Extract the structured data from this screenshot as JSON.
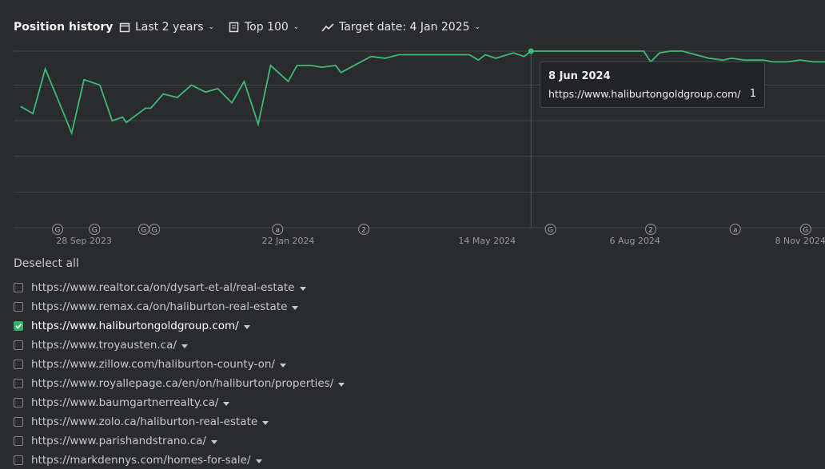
{
  "header": {
    "title": "Position history",
    "period": "Last 2 years",
    "top": "Top 100",
    "target_date": "Target date: 4 Jan 2025"
  },
  "chart_data": {
    "type": "line",
    "color": "#3dbb76",
    "x": [
      "2023-08-23",
      "2023-08-30",
      "2023-09-06",
      "2023-09-14",
      "2023-09-21",
      "2023-09-28",
      "2023-10-07",
      "2023-10-14",
      "2023-10-20",
      "2023-10-22",
      "2023-11-02",
      "2023-11-05",
      "2023-11-12",
      "2023-11-20",
      "2023-11-28",
      "2023-12-06",
      "2023-12-13",
      "2023-12-21",
      "2023-12-28",
      "2024-01-05",
      "2024-01-12",
      "2024-01-22",
      "2024-01-27",
      "2024-02-04",
      "2024-02-10",
      "2024-02-18",
      "2024-02-21",
      "2024-03-09",
      "2024-03-17",
      "2024-03-25",
      "2024-05-04",
      "2024-05-09",
      "2024-05-13",
      "2024-05-19",
      "2024-05-29",
      "2024-06-04",
      "2024-06-08",
      "2024-08-11",
      "2024-08-15",
      "2024-08-20",
      "2024-08-26",
      "2024-09-02",
      "2024-09-17",
      "2024-09-25",
      "2024-09-30",
      "2024-10-07",
      "2024-10-18",
      "2024-10-23",
      "2024-11-01",
      "2024-11-08",
      "2024-11-15",
      "2024-11-22"
    ],
    "values": [
      32,
      36,
      11,
      30,
      47,
      17,
      20,
      40,
      38,
      41,
      33,
      33,
      25,
      27,
      20,
      24,
      22,
      30,
      18,
      42,
      9,
      18,
      9,
      9,
      10,
      9,
      13,
      4,
      5,
      3,
      3,
      6,
      3,
      5,
      2,
      4,
      1,
      1,
      7,
      2,
      1,
      1,
      5,
      6,
      5,
      6,
      6,
      7,
      7,
      6,
      7,
      7
    ],
    "xlim": [
      "2023-08-19",
      "2024-11-22"
    ],
    "xticks": [
      {
        "value": "2023-09-28",
        "label": "28 Sep 2023"
      },
      {
        "value": "2024-01-22",
        "label": "22 Jan 2024"
      },
      {
        "value": "2024-05-14",
        "label": "14 May 2024"
      },
      {
        "value": "2024-08-06",
        "label": "6 Aug 2024"
      },
      {
        "value": "2024-11-08",
        "label": "8 Nov 2024"
      }
    ],
    "ylim": [
      100,
      1
    ],
    "gridlines": [
      1,
      20,
      40,
      60,
      80,
      100
    ],
    "markers": [
      {
        "x": "2023-09-13",
        "label": "G"
      },
      {
        "x": "2023-10-04",
        "label": "G"
      },
      {
        "x": "2023-11-01",
        "label": "G"
      },
      {
        "x": "2023-11-07",
        "label": "G"
      },
      {
        "x": "2024-01-16",
        "label": "a"
      },
      {
        "x": "2024-03-05",
        "label": "2"
      },
      {
        "x": "2024-06-19",
        "label": "G"
      },
      {
        "x": "2024-08-15",
        "label": "2"
      },
      {
        "x": "2024-10-02",
        "label": "a"
      },
      {
        "x": "2024-11-11",
        "label": "G"
      }
    ],
    "tooltip": {
      "date": {
        "value": "2024-06-08",
        "label": "8 Jun 2024"
      },
      "url": "https://www.haliburtongoldgroup.com/",
      "value": 1
    }
  },
  "list": {
    "deselect": "Deselect all",
    "items": [
      {
        "url": "https://www.realtor.ca/on/dysart-et-al/real-estate",
        "checked": false
      },
      {
        "url": "https://www.remax.ca/on/haliburton-real-estate",
        "checked": false
      },
      {
        "url": "https://www.haliburtongoldgroup.com/",
        "checked": true
      },
      {
        "url": "https://www.troyausten.ca/",
        "checked": false
      },
      {
        "url": "https://www.zillow.com/haliburton-county-on/",
        "checked": false
      },
      {
        "url": "https://www.royallepage.ca/en/on/haliburton/properties/",
        "checked": false
      },
      {
        "url": "https://www.baumgartnerrealty.ca/",
        "checked": false
      },
      {
        "url": "https://www.zolo.ca/haliburton-real-estate",
        "checked": false
      },
      {
        "url": "https://www.parishandstrano.ca/",
        "checked": false
      },
      {
        "url": "https://markdennys.com/homes-for-sale/",
        "checked": false
      }
    ]
  }
}
